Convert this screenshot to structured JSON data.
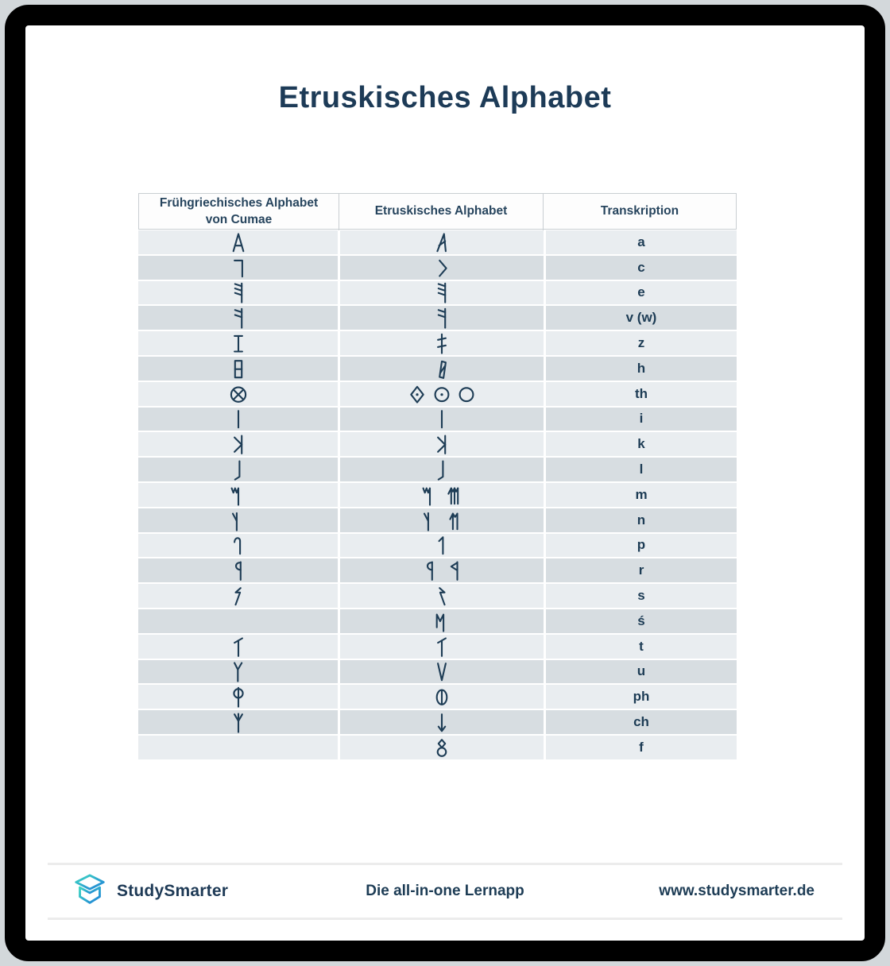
{
  "title": "Etruskisches Alphabet",
  "table": {
    "headers": [
      {
        "label": "Frühgriechisches Alphabet von Cumae"
      },
      {
        "label": "Etruskisches Alphabet"
      },
      {
        "label": "Transkription"
      }
    ],
    "rows": [
      {
        "greek_glyphs": [
          "alpha"
        ],
        "etruscan_glyphs": [
          "a"
        ],
        "transcription": "a"
      },
      {
        "greek_glyphs": [
          "gamma"
        ],
        "etruscan_glyphs": [
          "c"
        ],
        "transcription": "c"
      },
      {
        "greek_glyphs": [
          "epsilon"
        ],
        "etruscan_glyphs": [
          "epsilon"
        ],
        "transcription": "e"
      },
      {
        "greek_glyphs": [
          "digamma"
        ],
        "etruscan_glyphs": [
          "digamma"
        ],
        "transcription": "v (w)"
      },
      {
        "greek_glyphs": [
          "zeta-serif-i"
        ],
        "etruscan_glyphs": [
          "zeta-double-bar"
        ],
        "transcription": "z"
      },
      {
        "greek_glyphs": [
          "heta-box"
        ],
        "etruscan_glyphs": [
          "heta-slanted"
        ],
        "transcription": "h"
      },
      {
        "greek_glyphs": [
          "theta-crossed-circle"
        ],
        "etruscan_glyphs": [
          "theta-diamond-dot",
          "theta-circle-dot",
          "theta-circle"
        ],
        "transcription": "th"
      },
      {
        "greek_glyphs": [
          "iota"
        ],
        "etruscan_glyphs": [
          "iota"
        ],
        "transcription": "i"
      },
      {
        "greek_glyphs": [
          "kappa"
        ],
        "etruscan_glyphs": [
          "kappa"
        ],
        "transcription": "k"
      },
      {
        "greek_glyphs": [
          "lambda"
        ],
        "etruscan_glyphs": [
          "lambda"
        ],
        "transcription": "l"
      },
      {
        "greek_glyphs": [
          "mu"
        ],
        "etruscan_glyphs": [
          "mu",
          "mu-multi-stroke"
        ],
        "transcription": "m"
      },
      {
        "greek_glyphs": [
          "nu"
        ],
        "etruscan_glyphs": [
          "nu",
          "nu-double-stroke"
        ],
        "transcription": "n"
      },
      {
        "greek_glyphs": [
          "pi-hook"
        ],
        "etruscan_glyphs": [
          "pe-flag"
        ],
        "transcription": "p"
      },
      {
        "greek_glyphs": [
          "rho-round"
        ],
        "etruscan_glyphs": [
          "rho-round",
          "rho-angular"
        ],
        "transcription": "r"
      },
      {
        "greek_glyphs": [
          "sigma-zigzag"
        ],
        "etruscan_glyphs": [
          "sigma-zigzag-reversed"
        ],
        "transcription": "s"
      },
      {
        "greek_glyphs": [],
        "etruscan_glyphs": [
          "sade-m"
        ],
        "transcription": "ś"
      },
      {
        "greek_glyphs": [
          "tau-slanted"
        ],
        "etruscan_glyphs": [
          "tau-slanted"
        ],
        "transcription": "t"
      },
      {
        "greek_glyphs": [
          "upsilon-y"
        ],
        "etruscan_glyphs": [
          "upsilon-v"
        ],
        "transcription": "u"
      },
      {
        "greek_glyphs": [
          "phi-stemmed"
        ],
        "etruscan_glyphs": [
          "phi-circled"
        ],
        "transcription": "ph"
      },
      {
        "greek_glyphs": [
          "chi-psi"
        ],
        "etruscan_glyphs": [
          "chi-arrow"
        ],
        "transcription": "ch"
      },
      {
        "greek_glyphs": [],
        "etruscan_glyphs": [
          "ef-eight"
        ],
        "transcription": "f"
      }
    ]
  },
  "footer": {
    "brand": "StudySmarter",
    "tagline": "Die all-in-one Lernapp",
    "website": "www.studysmarter.de",
    "logo_icon": "open-box-logo"
  },
  "colors": {
    "ink_navy": "#1d3c55",
    "row_light": "#e9edf0",
    "row_dark": "#d7dde1",
    "header_border": "#c9ced2",
    "frame_black": "#000000",
    "outer_gray": "#d3d8db",
    "logo_teal": "#3fd8c2",
    "logo_blue": "#1e7fd8",
    "footer_rule": "#ececec"
  }
}
